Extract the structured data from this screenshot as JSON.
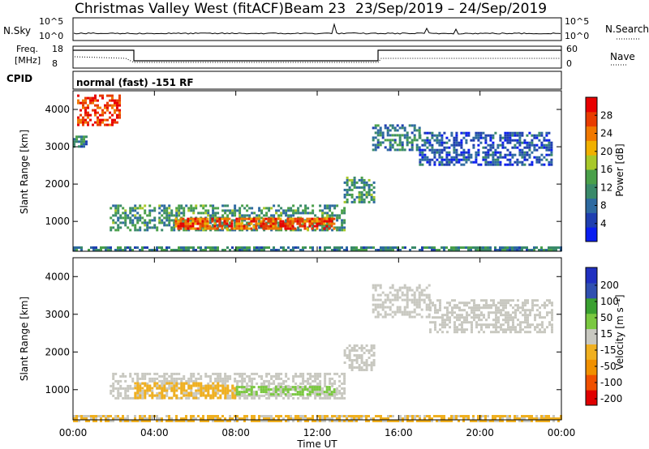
{
  "header": {
    "station": "Christmas Valley West (fitACF)",
    "beam": "Beam 23",
    "date_range": "23/Sep/2019 – 24/Sep/2019"
  },
  "strip_labels": {
    "nsky": "N.Sky",
    "nsearch": "N.Search",
    "freq_line1": "Freq.",
    "freq_line2": "[MHz]",
    "nave": "Nave",
    "cpid": "CPID",
    "cpid_value": "normal (fast) -151 RF",
    "nsky_ticks": [
      "10^5",
      "10^0"
    ],
    "nsearch_ticks": [
      "10^5",
      "10^0"
    ],
    "freq_ticks": [
      "18",
      "8"
    ],
    "nave_ticks": [
      "60",
      "0"
    ]
  },
  "colors": {
    "power_scale": [
      "#0a1ef0",
      "#1f3fb0",
      "#2e6aa0",
      "#3a8a6a",
      "#4aa04a",
      "#a8c82a",
      "#f0b000",
      "#f07800",
      "#e83c00",
      "#e80000"
    ],
    "velocity_scale": [
      "#e00000",
      "#f05000",
      "#f09000",
      "#f0b020",
      "#c8c8c0",
      "#7ac840",
      "#3aa030",
      "#3050b0",
      "#2030c0"
    ]
  },
  "chart_data": [
    {
      "type": "heatmap",
      "title": "",
      "xlabel": "",
      "ylabel": "Slant Range [km]",
      "x_ticks": [
        "00:00",
        "04:00",
        "08:00",
        "12:00",
        "16:00",
        "20:00",
        "00:00"
      ],
      "y_ticks": [
        "1000",
        "2000",
        "3000",
        "4000"
      ],
      "x_range_hours": [
        0,
        24
      ],
      "ylim": [
        200,
        4500
      ],
      "colorbar": {
        "label": "Power [dB]",
        "ticks": [
          "4",
          "8",
          "12",
          "16",
          "20",
          "24",
          "28"
        ],
        "range": [
          0,
          32
        ]
      },
      "regions": [
        {
          "t0": 1.8,
          "t1": 13.4,
          "r0": 780,
          "r1": 1450,
          "level": 12
        },
        {
          "t0": 5.0,
          "t1": 12.8,
          "r0": 820,
          "r1": 1100,
          "level": 26
        },
        {
          "t0": 0.0,
          "t1": 24.0,
          "r0": 200,
          "r1": 330,
          "level": 10
        },
        {
          "t0": 13.3,
          "t1": 14.8,
          "r0": 1500,
          "r1": 2200,
          "level": 12
        },
        {
          "t0": 14.7,
          "t1": 17.0,
          "r0": 2900,
          "r1": 3600,
          "level": 10
        },
        {
          "t0": 17.0,
          "t1": 23.5,
          "r0": 2500,
          "r1": 3400,
          "level": 6
        },
        {
          "t0": 0.0,
          "t1": 0.6,
          "r0": 3000,
          "r1": 3300,
          "level": 10
        },
        {
          "t0": 0.2,
          "t1": 2.3,
          "r0": 3600,
          "r1": 4400,
          "level": 28
        }
      ]
    },
    {
      "type": "heatmap",
      "title": "",
      "xlabel": "Time UT",
      "ylabel": "Slant Range [km]",
      "x_ticks": [
        "00:00",
        "04:00",
        "08:00",
        "12:00",
        "16:00",
        "20:00",
        "00:00"
      ],
      "y_ticks": [
        "1000",
        "2000",
        "3000",
        "4000"
      ],
      "x_range_hours": [
        0,
        24
      ],
      "ylim": [
        200,
        4500
      ],
      "colorbar": {
        "label": "Velocity [m s⁻¹]",
        "ticks": [
          "-200",
          "-100",
          "-50",
          "-15",
          "15",
          "50",
          "100",
          "200"
        ],
        "range": [
          -250,
          250
        ]
      },
      "regions": [
        {
          "t0": 1.8,
          "t1": 13.3,
          "r0": 800,
          "r1": 1450,
          "level": 0
        },
        {
          "t0": 3.0,
          "t1": 8.0,
          "r0": 800,
          "r1": 1200,
          "level": -40
        },
        {
          "t0": 8.0,
          "t1": 13.0,
          "r0": 850,
          "r1": 1100,
          "level": 30
        },
        {
          "t0": 0.0,
          "t1": 24.0,
          "r0": 200,
          "r1": 330,
          "level": -30
        },
        {
          "t0": 13.3,
          "t1": 14.8,
          "r0": 1500,
          "r1": 2200,
          "level": 0
        },
        {
          "t0": 14.7,
          "t1": 17.5,
          "r0": 2900,
          "r1": 3800,
          "level": 0
        },
        {
          "t0": 17.5,
          "t1": 23.5,
          "r0": 2500,
          "r1": 3400,
          "level": 0
        }
      ]
    }
  ]
}
